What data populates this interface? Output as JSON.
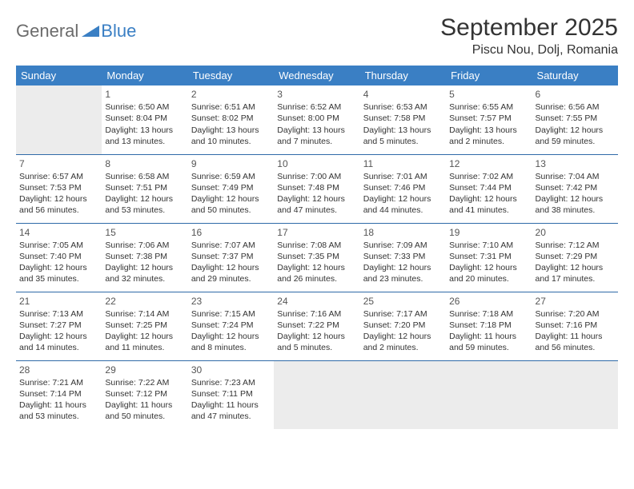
{
  "logo": {
    "general": "General",
    "blue": "Blue"
  },
  "title": "September 2025",
  "location": "Piscu Nou, Dolj, Romania",
  "headerColor": "#3a7fc4",
  "headerTextColor": "#ffffff",
  "borderColor": "#2f6aa8",
  "emptyBg": "#ececec",
  "dayHeaders": [
    "Sunday",
    "Monday",
    "Tuesday",
    "Wednesday",
    "Thursday",
    "Friday",
    "Saturday"
  ],
  "weeks": [
    [
      null,
      {
        "n": "1",
        "sr": "Sunrise: 6:50 AM",
        "ss": "Sunset: 8:04 PM",
        "dl1": "Daylight: 13 hours",
        "dl2": "and 13 minutes."
      },
      {
        "n": "2",
        "sr": "Sunrise: 6:51 AM",
        "ss": "Sunset: 8:02 PM",
        "dl1": "Daylight: 13 hours",
        "dl2": "and 10 minutes."
      },
      {
        "n": "3",
        "sr": "Sunrise: 6:52 AM",
        "ss": "Sunset: 8:00 PM",
        "dl1": "Daylight: 13 hours",
        "dl2": "and 7 minutes."
      },
      {
        "n": "4",
        "sr": "Sunrise: 6:53 AM",
        "ss": "Sunset: 7:58 PM",
        "dl1": "Daylight: 13 hours",
        "dl2": "and 5 minutes."
      },
      {
        "n": "5",
        "sr": "Sunrise: 6:55 AM",
        "ss": "Sunset: 7:57 PM",
        "dl1": "Daylight: 13 hours",
        "dl2": "and 2 minutes."
      },
      {
        "n": "6",
        "sr": "Sunrise: 6:56 AM",
        "ss": "Sunset: 7:55 PM",
        "dl1": "Daylight: 12 hours",
        "dl2": "and 59 minutes."
      }
    ],
    [
      {
        "n": "7",
        "sr": "Sunrise: 6:57 AM",
        "ss": "Sunset: 7:53 PM",
        "dl1": "Daylight: 12 hours",
        "dl2": "and 56 minutes."
      },
      {
        "n": "8",
        "sr": "Sunrise: 6:58 AM",
        "ss": "Sunset: 7:51 PM",
        "dl1": "Daylight: 12 hours",
        "dl2": "and 53 minutes."
      },
      {
        "n": "9",
        "sr": "Sunrise: 6:59 AM",
        "ss": "Sunset: 7:49 PM",
        "dl1": "Daylight: 12 hours",
        "dl2": "and 50 minutes."
      },
      {
        "n": "10",
        "sr": "Sunrise: 7:00 AM",
        "ss": "Sunset: 7:48 PM",
        "dl1": "Daylight: 12 hours",
        "dl2": "and 47 minutes."
      },
      {
        "n": "11",
        "sr": "Sunrise: 7:01 AM",
        "ss": "Sunset: 7:46 PM",
        "dl1": "Daylight: 12 hours",
        "dl2": "and 44 minutes."
      },
      {
        "n": "12",
        "sr": "Sunrise: 7:02 AM",
        "ss": "Sunset: 7:44 PM",
        "dl1": "Daylight: 12 hours",
        "dl2": "and 41 minutes."
      },
      {
        "n": "13",
        "sr": "Sunrise: 7:04 AM",
        "ss": "Sunset: 7:42 PM",
        "dl1": "Daylight: 12 hours",
        "dl2": "and 38 minutes."
      }
    ],
    [
      {
        "n": "14",
        "sr": "Sunrise: 7:05 AM",
        "ss": "Sunset: 7:40 PM",
        "dl1": "Daylight: 12 hours",
        "dl2": "and 35 minutes."
      },
      {
        "n": "15",
        "sr": "Sunrise: 7:06 AM",
        "ss": "Sunset: 7:38 PM",
        "dl1": "Daylight: 12 hours",
        "dl2": "and 32 minutes."
      },
      {
        "n": "16",
        "sr": "Sunrise: 7:07 AM",
        "ss": "Sunset: 7:37 PM",
        "dl1": "Daylight: 12 hours",
        "dl2": "and 29 minutes."
      },
      {
        "n": "17",
        "sr": "Sunrise: 7:08 AM",
        "ss": "Sunset: 7:35 PM",
        "dl1": "Daylight: 12 hours",
        "dl2": "and 26 minutes."
      },
      {
        "n": "18",
        "sr": "Sunrise: 7:09 AM",
        "ss": "Sunset: 7:33 PM",
        "dl1": "Daylight: 12 hours",
        "dl2": "and 23 minutes."
      },
      {
        "n": "19",
        "sr": "Sunrise: 7:10 AM",
        "ss": "Sunset: 7:31 PM",
        "dl1": "Daylight: 12 hours",
        "dl2": "and 20 minutes."
      },
      {
        "n": "20",
        "sr": "Sunrise: 7:12 AM",
        "ss": "Sunset: 7:29 PM",
        "dl1": "Daylight: 12 hours",
        "dl2": "and 17 minutes."
      }
    ],
    [
      {
        "n": "21",
        "sr": "Sunrise: 7:13 AM",
        "ss": "Sunset: 7:27 PM",
        "dl1": "Daylight: 12 hours",
        "dl2": "and 14 minutes."
      },
      {
        "n": "22",
        "sr": "Sunrise: 7:14 AM",
        "ss": "Sunset: 7:25 PM",
        "dl1": "Daylight: 12 hours",
        "dl2": "and 11 minutes."
      },
      {
        "n": "23",
        "sr": "Sunrise: 7:15 AM",
        "ss": "Sunset: 7:24 PM",
        "dl1": "Daylight: 12 hours",
        "dl2": "and 8 minutes."
      },
      {
        "n": "24",
        "sr": "Sunrise: 7:16 AM",
        "ss": "Sunset: 7:22 PM",
        "dl1": "Daylight: 12 hours",
        "dl2": "and 5 minutes."
      },
      {
        "n": "25",
        "sr": "Sunrise: 7:17 AM",
        "ss": "Sunset: 7:20 PM",
        "dl1": "Daylight: 12 hours",
        "dl2": "and 2 minutes."
      },
      {
        "n": "26",
        "sr": "Sunrise: 7:18 AM",
        "ss": "Sunset: 7:18 PM",
        "dl1": "Daylight: 11 hours",
        "dl2": "and 59 minutes."
      },
      {
        "n": "27",
        "sr": "Sunrise: 7:20 AM",
        "ss": "Sunset: 7:16 PM",
        "dl1": "Daylight: 11 hours",
        "dl2": "and 56 minutes."
      }
    ],
    [
      {
        "n": "28",
        "sr": "Sunrise: 7:21 AM",
        "ss": "Sunset: 7:14 PM",
        "dl1": "Daylight: 11 hours",
        "dl2": "and 53 minutes."
      },
      {
        "n": "29",
        "sr": "Sunrise: 7:22 AM",
        "ss": "Sunset: 7:12 PM",
        "dl1": "Daylight: 11 hours",
        "dl2": "and 50 minutes."
      },
      {
        "n": "30",
        "sr": "Sunrise: 7:23 AM",
        "ss": "Sunset: 7:11 PM",
        "dl1": "Daylight: 11 hours",
        "dl2": "and 47 minutes."
      },
      null,
      null,
      null,
      null
    ]
  ]
}
